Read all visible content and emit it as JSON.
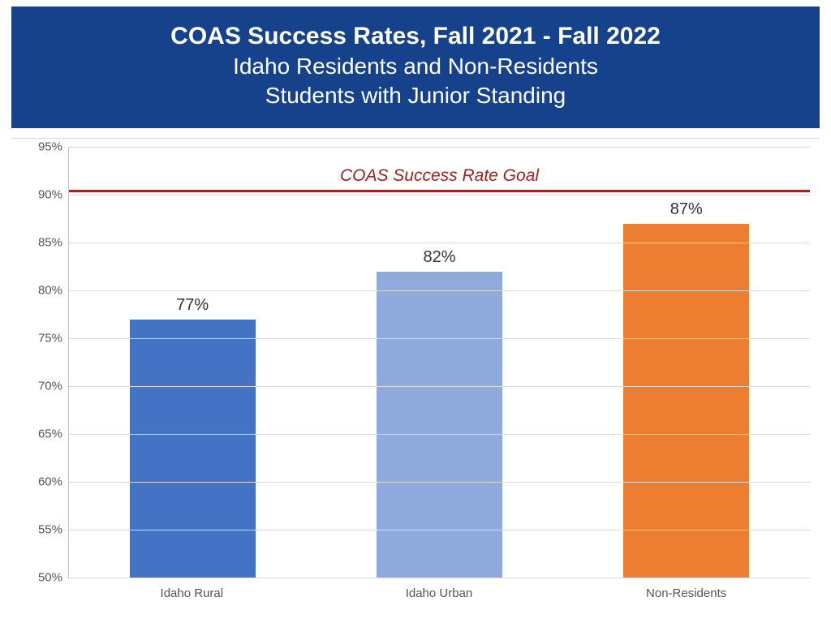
{
  "header": {
    "bg_color": "#16428c",
    "title": "COAS Success Rates, Fall 2021 - Fall 2022",
    "title_fontsize": 30,
    "subtitle_line1": "Idaho Residents and Non-Residents",
    "subtitle_line2": "Students with Junior Standing",
    "subtitle_fontsize": 28,
    "text_color": "#ffffff"
  },
  "chart": {
    "type": "bar",
    "background_color": "#ffffff",
    "grid_color": "#d9d9d9",
    "axis_color": "#bfbfbf",
    "y_axis": {
      "min": 50,
      "max": 95,
      "tick_step": 5,
      "ticks": [
        "50%",
        "55%",
        "60%",
        "65%",
        "70%",
        "75%",
        "80%",
        "85%",
        "90%",
        "95%"
      ],
      "tick_fontsize": 15,
      "tick_color": "#555555"
    },
    "goal": {
      "label": "COAS Success Rate Goal",
      "value": 90.5,
      "line_color": "#a6201e",
      "line_width": 3,
      "label_color": "#a6201e",
      "label_fontsize": 21
    },
    "categories": [
      "Idaho Rural",
      "Idaho Urban",
      "Non-Residents"
    ],
    "values": [
      77,
      82,
      87
    ],
    "value_labels": [
      "77%",
      "82%",
      "87%"
    ],
    "value_label_fontsize": 20,
    "bar_colors": [
      "#4472c4",
      "#8faadc",
      "#ed7d31"
    ],
    "x_label_fontsize": 15,
    "x_label_color": "#555555",
    "bar_width_pct": 17
  }
}
